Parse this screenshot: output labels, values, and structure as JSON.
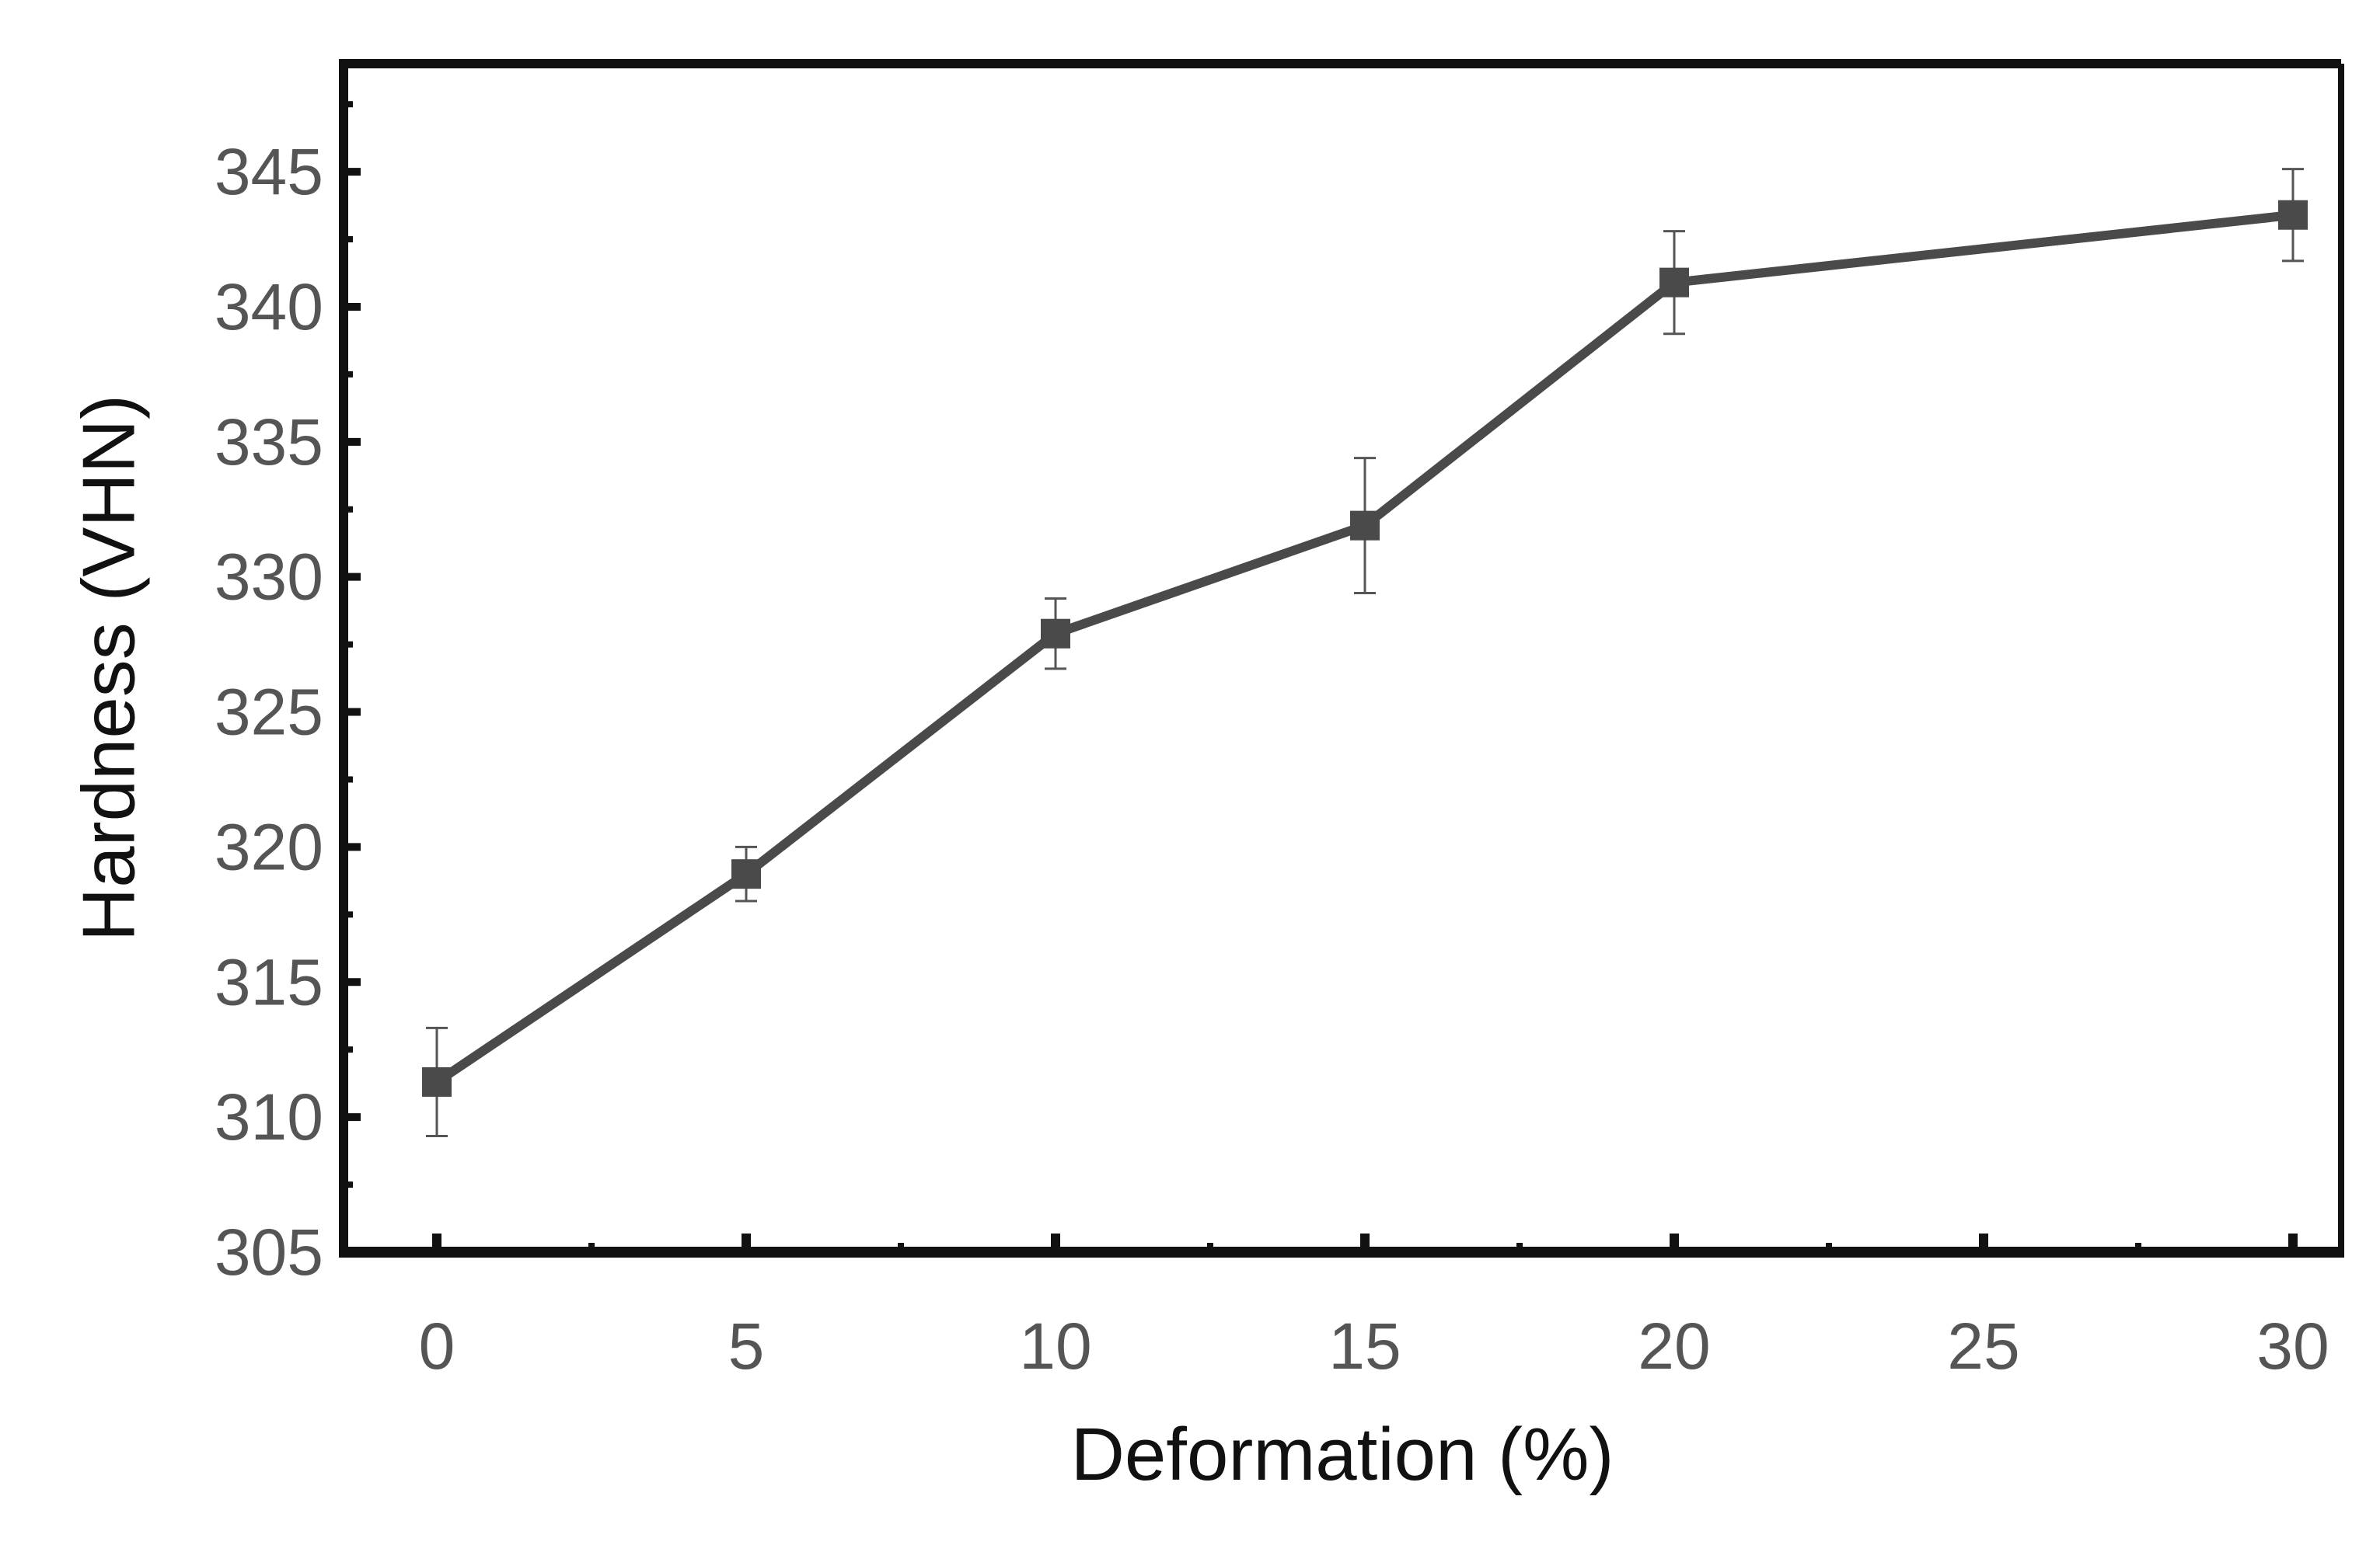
{
  "chart_data": {
    "type": "line",
    "title": "",
    "xlabel": "Deformation (%)",
    "ylabel": "Hardness (VHN)",
    "x_tick_labels": [
      "0",
      "5",
      "10",
      "15",
      "20",
      "25",
      "30"
    ],
    "y_tick_labels": [
      "305",
      "310",
      "315",
      "320",
      "325",
      "330",
      "335",
      "340",
      "345"
    ],
    "ylim": [
      305,
      349
    ],
    "y_ticks": [
      305,
      310,
      315,
      320,
      325,
      330,
      335,
      340,
      345
    ],
    "x_scale_note": "categorical, evenly spaced ticks",
    "grid": false,
    "legend": "none",
    "series": [
      {
        "points": [
          {
            "x": "0",
            "y": 311.3,
            "err": 2.0
          },
          {
            "x": "5",
            "y": 319.0,
            "err": 1.0
          },
          {
            "x": "10",
            "y": 327.9,
            "err": 1.3
          },
          {
            "x": "15",
            "y": 331.9,
            "err": 2.5
          },
          {
            "x": "20",
            "y": 340.9,
            "err": 1.9
          },
          {
            "x": "30",
            "y": 343.4,
            "err": 1.7
          }
        ],
        "color": "#4a4a4a",
        "marker": "square"
      }
    ]
  }
}
